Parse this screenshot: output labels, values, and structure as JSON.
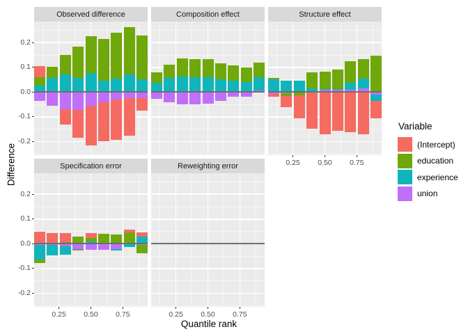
{
  "axes": {
    "y_title": "Difference",
    "x_title": "Quantile rank",
    "y_tick_labels": [
      "0.2",
      "0.1",
      "0.0",
      "-0.1",
      "-0.2"
    ],
    "x_tick_labels": [
      "0.25",
      "0.50",
      "0.75"
    ]
  },
  "legend": {
    "title": "Variable"
  },
  "style_colors": {
    "panel_bg": "#ebebeb",
    "strip_bg": "#d9d9d9",
    "grid": "#ffffff",
    "zero_line": "#6e6e6e",
    "tick_text": "#4d4d4d"
  },
  "chart_data": {
    "type": "bar",
    "stacked": true,
    "diverging": true,
    "x": [
      0.1,
      0.2,
      0.3,
      0.4,
      0.5,
      0.6,
      0.7,
      0.8,
      0.9
    ],
    "x_tick_values": [
      0.25,
      0.5,
      0.75
    ],
    "y_tick_values": [
      0.2,
      0.1,
      0.0,
      -0.1,
      -0.2
    ],
    "y_minor_values": [
      0.25,
      0.15,
      0.05,
      -0.05,
      -0.15,
      -0.25
    ],
    "x_minor_values": [
      0.125,
      0.375,
      0.625,
      0.875
    ],
    "ylim": [
      -0.255,
      0.285
    ],
    "xlim": [
      0.056,
      0.944
    ],
    "xlabel": "Quantile rank",
    "ylabel": "Difference",
    "legend_title": "Variable",
    "legend_position": "right",
    "grid": true,
    "variables": [
      "(Intercept)",
      "education",
      "experience",
      "union"
    ],
    "variable_colors": {
      "(Intercept)": "#f56b62",
      "education": "#6fa80a",
      "experience": "#10b5bb",
      "union": "#c06ffa"
    },
    "stack_order_from_axis": [
      "union",
      "experience",
      "education",
      "(Intercept)"
    ],
    "panels": [
      {
        "title": "Observed difference",
        "row": 0,
        "col": 0,
        "values": {
          "(Intercept)": [
            0.044,
            0.0,
            -0.062,
            -0.115,
            -0.163,
            -0.158,
            -0.163,
            -0.153,
            -0.05
          ],
          "education": [
            0.036,
            0.045,
            0.079,
            0.126,
            0.147,
            0.169,
            0.187,
            0.191,
            0.177
          ],
          "experience": [
            0.025,
            0.058,
            0.07,
            0.058,
            0.078,
            0.045,
            0.053,
            0.072,
            0.051
          ],
          "union": [
            -0.036,
            -0.055,
            -0.068,
            -0.071,
            -0.054,
            -0.04,
            -0.03,
            -0.024,
            -0.024
          ]
        }
      },
      {
        "title": "Composition effect",
        "row": 0,
        "col": 1,
        "values": {
          "(Intercept)": [
            0,
            0,
            0,
            0,
            0,
            0,
            0,
            0,
            0
          ],
          "education": [
            0.043,
            0.054,
            0.074,
            0.073,
            0.073,
            0.066,
            0.062,
            0.058,
            0.059
          ],
          "experience": [
            0.037,
            0.058,
            0.063,
            0.061,
            0.061,
            0.051,
            0.045,
            0.04,
            0.055
          ],
          "union": [
            -0.028,
            -0.04,
            -0.049,
            -0.051,
            -0.047,
            -0.037,
            -0.02,
            -0.018,
            0.006
          ]
        }
      },
      {
        "title": "Structure effect",
        "row": 0,
        "col": 2,
        "values": {
          "(Intercept)": [
            -0.012,
            -0.045,
            -0.093,
            -0.147,
            -0.172,
            -0.156,
            -0.163,
            -0.17,
            -0.072
          ],
          "education": [
            0.006,
            -0.013,
            -0.012,
            0.066,
            0.07,
            0.078,
            0.087,
            0.081,
            0.148
          ],
          "experience": [
            0.052,
            0.047,
            0.047,
            0.01,
            0.002,
            0.002,
            0.028,
            0.037,
            -0.024
          ],
          "union": [
            -0.008,
            -0.004,
            -0.002,
            0.004,
            0.011,
            0.01,
            0.01,
            0.016,
            -0.011
          ]
        }
      },
      {
        "title": "Specification error",
        "row": 1,
        "col": 0,
        "values": {
          "(Intercept)": [
            0.049,
            0.043,
            0.036,
            -0.004,
            0.019,
            0.0,
            0.0,
            0.011,
            0.017
          ],
          "education": [
            -0.014,
            0.0,
            0.006,
            0.03,
            0.015,
            0.034,
            0.037,
            0.045,
            -0.033
          ],
          "experience": [
            -0.059,
            -0.041,
            -0.036,
            -0.002,
            0.008,
            0.005,
            -0.006,
            -0.01,
            0.028
          ],
          "union": [
            -0.005,
            -0.006,
            -0.009,
            -0.022,
            -0.025,
            -0.025,
            -0.022,
            -0.003,
            -0.005
          ]
        }
      },
      {
        "title": "Reweighting error",
        "row": 1,
        "col": 1,
        "values": {
          "(Intercept)": [
            0,
            0,
            0,
            0,
            0,
            0,
            0,
            0,
            0
          ],
          "education": [
            0,
            0,
            0,
            0,
            0,
            0,
            0,
            0,
            0
          ],
          "experience": [
            0,
            0,
            0,
            0,
            0,
            0,
            0,
            0,
            0
          ],
          "union": [
            0,
            0,
            0,
            0,
            0,
            0,
            0,
            0,
            0
          ]
        }
      }
    ]
  }
}
